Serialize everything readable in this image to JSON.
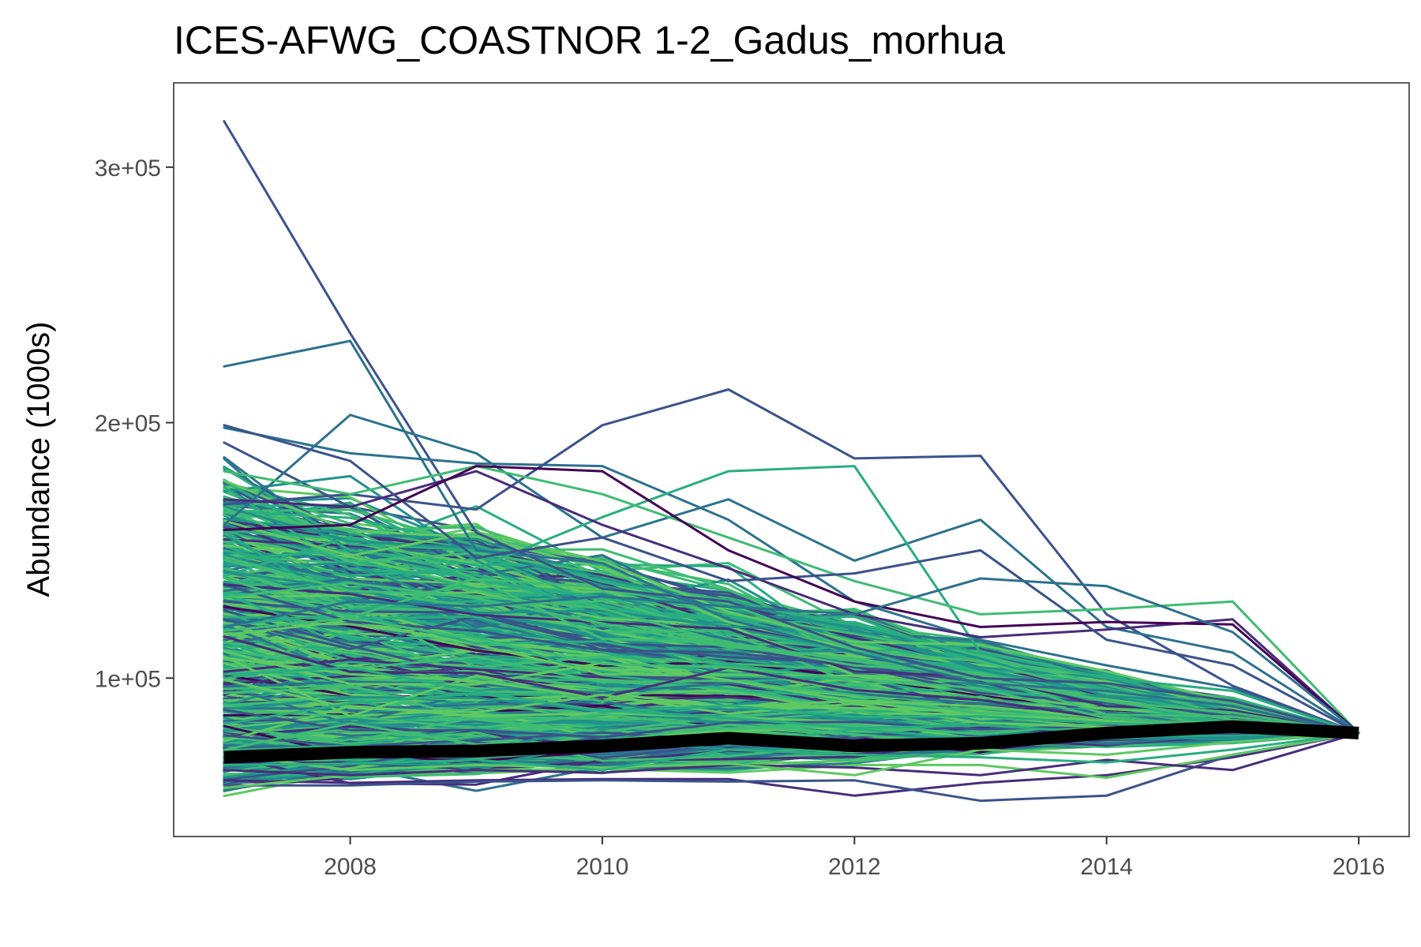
{
  "chart_data": {
    "type": "line",
    "title": "ICES-AFWG_COASTNOR 1-2_Gadus_morhua",
    "xlabel": "",
    "ylabel": "Abundance (1000s)",
    "x": [
      2007,
      2008,
      2009,
      2010,
      2011,
      2012,
      2013,
      2014,
      2015,
      2016
    ],
    "xlim": [
      2006.6,
      2016.4
    ],
    "ylim": [
      38000,
      333000
    ],
    "x_ticks": [
      2008,
      2010,
      2012,
      2014,
      2016
    ],
    "y_ticks": [
      100000,
      200000,
      300000
    ],
    "y_tick_labels": [
      "1e+05",
      "2e+05",
      "3e+05"
    ],
    "grid": false,
    "legend": "none",
    "palette": [
      "#440154",
      "#472d7b",
      "#3b528b",
      "#2c728e",
      "#21918c",
      "#28ae80",
      "#3fbc73",
      "#5ec962"
    ],
    "mean_series": {
      "color": "#000000",
      "values": [
        69000,
        71000,
        71500,
        73500,
        76500,
        73500,
        74500,
        78500,
        81000,
        78500
      ]
    },
    "highlighted_series": [
      {
        "color": "#3b528b",
        "values": [
          318000,
          235000,
          157000,
          135000,
          130000,
          112000,
          100000,
          98000,
          91000,
          78500
        ]
      },
      {
        "color": "#2c728e",
        "values": [
          222000,
          232000,
          150000,
          145000,
          123000,
          110000,
          98000,
          95000,
          89000,
          78500
        ]
      },
      {
        "color": "#2c728e",
        "values": [
          198000,
          188000,
          184000,
          183000,
          162000,
          130000,
          115000,
          105000,
          96000,
          78500
        ]
      },
      {
        "color": "#3b528b",
        "values": [
          168000,
          172000,
          166000,
          199000,
          213000,
          186000,
          187000,
          125000,
          97000,
          78500
        ]
      },
      {
        "color": "#2c728e",
        "values": [
          160000,
          203000,
          188000,
          155000,
          170000,
          146000,
          162000,
          120000,
          110000,
          78500
        ]
      },
      {
        "color": "#28ae80",
        "values": [
          150000,
          140000,
          143000,
          163000,
          181000,
          183000,
          110000,
          100000,
          95000,
          78500
        ]
      },
      {
        "color": "#3fbc73",
        "values": [
          181000,
          172000,
          183000,
          172000,
          155000,
          138000,
          125000,
          127000,
          130000,
          78500
        ]
      },
      {
        "color": "#472d7b",
        "values": [
          170000,
          167000,
          181000,
          160000,
          143000,
          125000,
          116000,
          119000,
          123000,
          78500
        ]
      },
      {
        "color": "#3b528b",
        "values": [
          199000,
          185000,
          147000,
          155000,
          138000,
          141000,
          150000,
          115000,
          105000,
          78500
        ]
      },
      {
        "color": "#440154",
        "values": [
          158000,
          160000,
          183000,
          181000,
          150000,
          130000,
          120000,
          122000,
          121000,
          78500
        ]
      },
      {
        "color": "#2c728e",
        "values": [
          120000,
          130000,
          128000,
          132000,
          128000,
          125000,
          139000,
          136000,
          118000,
          78500
        ]
      },
      {
        "color": "#472d7b",
        "values": [
          60000,
          59000,
          60000,
          60500,
          60500,
          54000,
          59000,
          62000,
          69000,
          78500
        ]
      },
      {
        "color": "#3b528b",
        "values": [
          58000,
          58000,
          59500,
          60000,
          59500,
          60000,
          52000,
          54000,
          70000,
          78500
        ]
      },
      {
        "color": "#5ec962",
        "values": [
          57000,
          62000,
          64000,
          64500,
          63000,
          66000,
          66000,
          61000,
          70000,
          78500
        ]
      },
      {
        "color": "#472d7b",
        "values": [
          64000,
          62000,
          64000,
          63000,
          66000,
          65000,
          62000,
          68000,
          64000,
          78500
        ]
      },
      {
        "color": "#5ec962",
        "values": [
          70000,
          64000,
          66000,
          65000,
          66500,
          62000,
          72000,
          70000,
          75000,
          78500
        ]
      },
      {
        "color": "#28ae80",
        "values": [
          66000,
          66500,
          68000,
          64000,
          72000,
          70000,
          69000,
          67000,
          72000,
          78500
        ]
      }
    ],
    "background_series_count": 620,
    "background_range": [
      62000,
      172000
    ]
  }
}
